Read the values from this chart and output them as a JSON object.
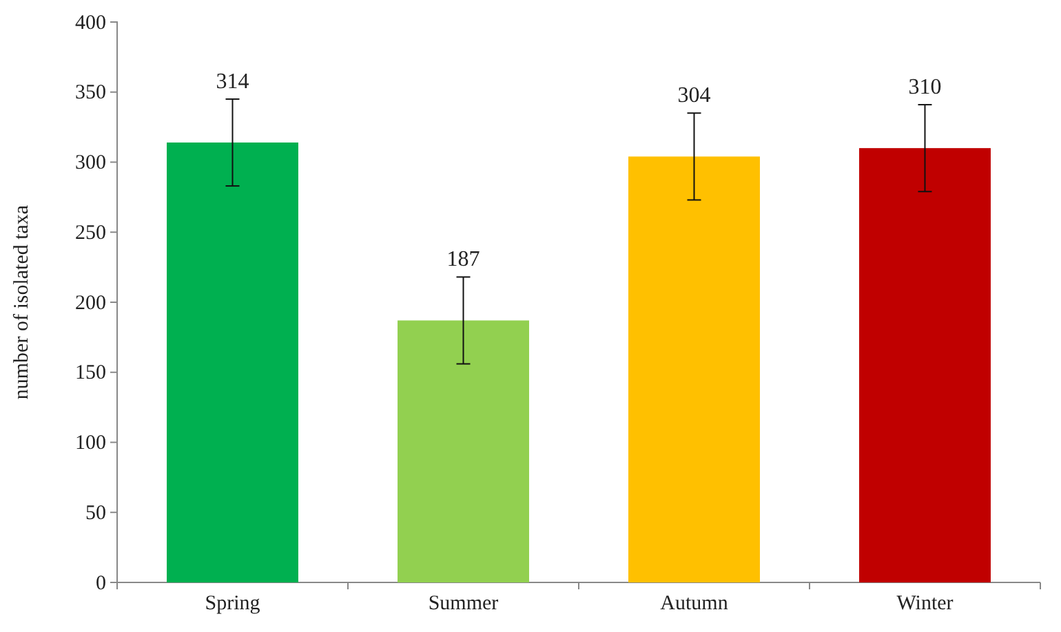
{
  "chart_data": {
    "type": "bar",
    "ylabel": "number of isolated taxa",
    "categories": [
      "Spring",
      "Summer",
      "Autumn",
      "Winter"
    ],
    "values": [
      314,
      187,
      304,
      310
    ],
    "colors": [
      "#00b050",
      "#92d050",
      "#ffc000",
      "#c00000"
    ],
    "errors": [
      31,
      31,
      31,
      31
    ],
    "data_labels": true,
    "ylim": [
      0,
      400
    ],
    "yticks": [
      0,
      50,
      100,
      150,
      200,
      250,
      300,
      350,
      400
    ],
    "grid": false
  }
}
